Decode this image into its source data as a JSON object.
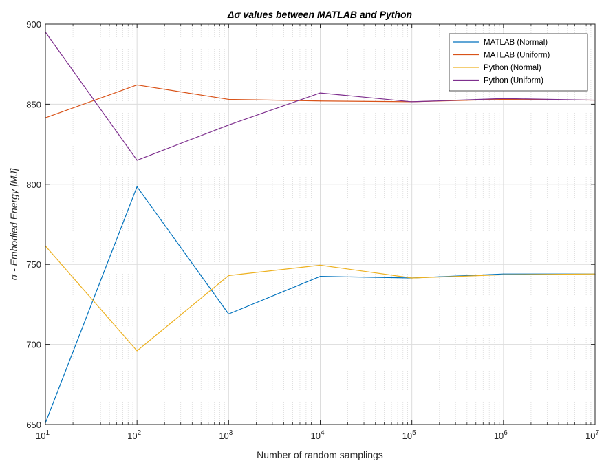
{
  "chart_data": {
    "type": "line",
    "title": "Δσ values between MATLAB and Python",
    "title_symbol": "Δσ",
    "title_rest": " values between MATLAB and Python",
    "xlabel": "Number of random samplings",
    "ylabel": "σ - Embodied Energy [MJ]",
    "ylabel_symbol": "σ",
    "ylabel_rest": " - Embodied Energy [MJ]",
    "x_scale": "log",
    "x": [
      10,
      100,
      1000,
      10000,
      100000,
      1000000,
      10000000
    ],
    "x_tick_labels": [
      {
        "base": "10",
        "exp": "1"
      },
      {
        "base": "10",
        "exp": "2"
      },
      {
        "base": "10",
        "exp": "3"
      },
      {
        "base": "10",
        "exp": "4"
      },
      {
        "base": "10",
        "exp": "5"
      },
      {
        "base": "10",
        "exp": "6"
      },
      {
        "base": "10",
        "exp": "7"
      }
    ],
    "xlim": [
      10,
      10000000
    ],
    "ylim": [
      650,
      900
    ],
    "y_ticks": [
      "650",
      "700",
      "750",
      "800",
      "850",
      "900"
    ],
    "grid": true,
    "minor_grid": true,
    "legend_position": "top-right",
    "series": [
      {
        "name": "MATLAB (Normal)",
        "color": "#0072BD",
        "values": [
          651,
          798.5,
          719,
          742.5,
          741.5,
          744,
          744
        ]
      },
      {
        "name": "MATLAB (Uniform)",
        "color": "#D95319",
        "values": [
          841.5,
          862,
          853,
          852,
          851.5,
          853,
          852.5
        ]
      },
      {
        "name": "Python (Normal)",
        "color": "#EDB120",
        "values": [
          761.5,
          696,
          743,
          749.5,
          741.5,
          743.5,
          744
        ]
      },
      {
        "name": "Python (Uniform)",
        "color": "#7E2F8E",
        "values": [
          895,
          815,
          837,
          857,
          851.5,
          853.5,
          852.5
        ]
      }
    ]
  }
}
